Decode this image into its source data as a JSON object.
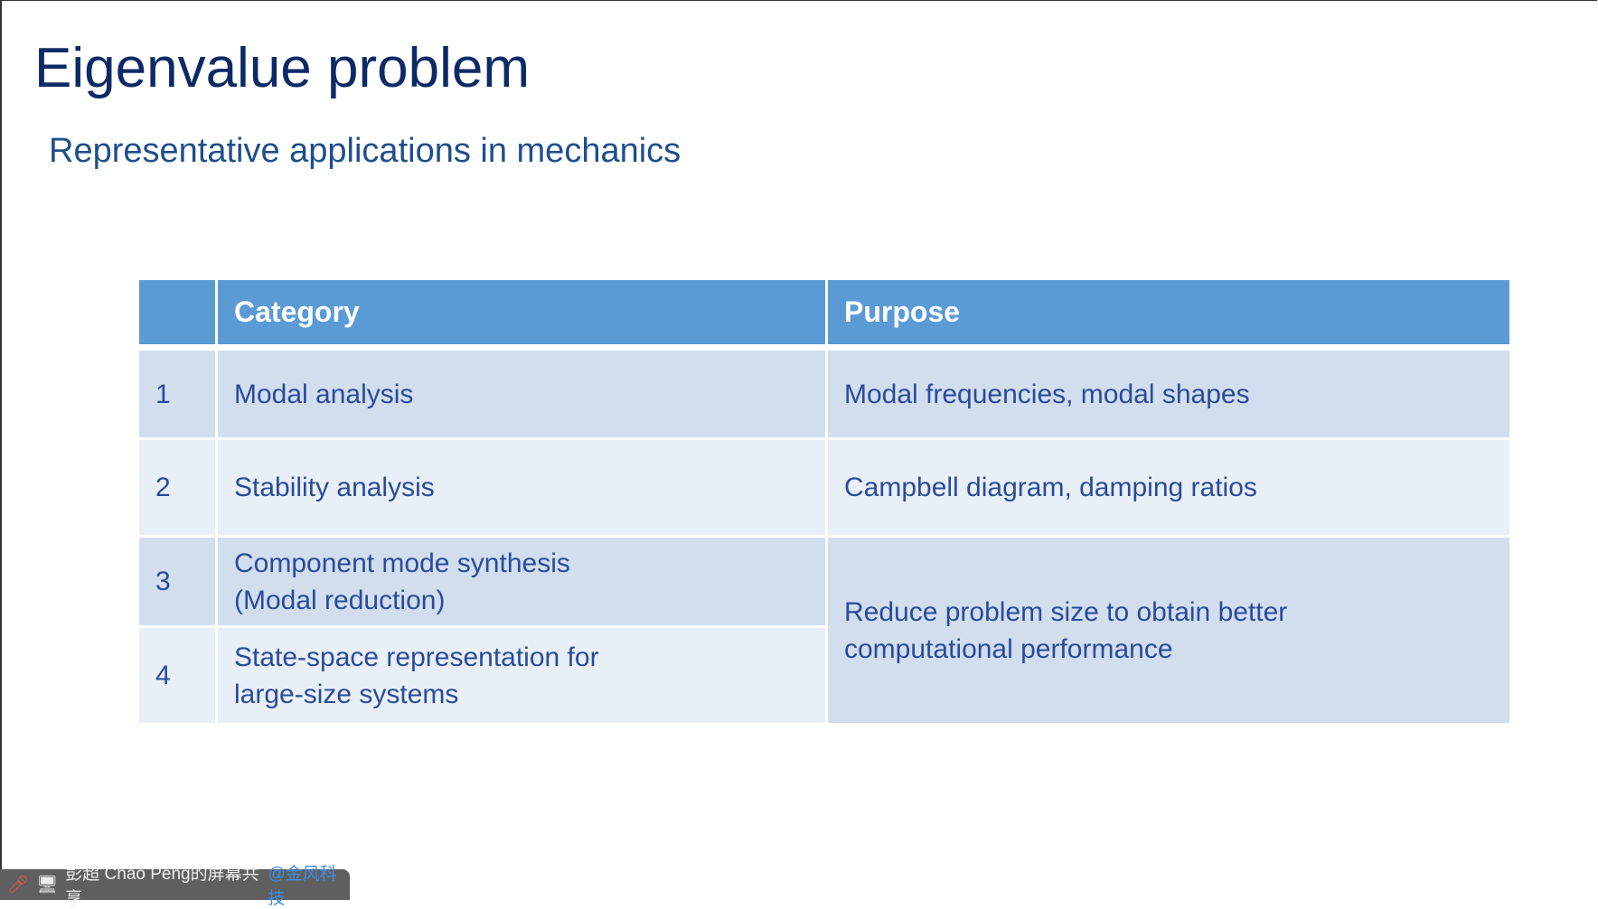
{
  "slide": {
    "title": "Eigenvalue problem",
    "subtitle": "Representative applications in mechanics"
  },
  "table": {
    "headers": [
      "",
      "Category",
      "Purpose"
    ],
    "rows": [
      {
        "num": "1",
        "category": "Modal analysis",
        "purpose": "Modal frequencies, modal shapes"
      },
      {
        "num": "2",
        "category": "Stability analysis",
        "purpose": "Campbell diagram, damping ratios"
      },
      {
        "num": "3",
        "category": "Component mode synthesis (Modal reduction)",
        "purpose": "Reduce problem size to obtain better computational performance"
      },
      {
        "num": "4",
        "category": "State-space representation for large-size systems"
      }
    ],
    "colors": {
      "header": "#5b9bd5",
      "row_dark": "#d1deee",
      "row_light": "#e9eff7",
      "text": "#2a4b9b"
    }
  },
  "share_bar": {
    "icons": [
      "mic-muted-icon",
      "screen-share-icon"
    ],
    "text": "彭超 Chao Peng的屏幕共享",
    "org": "@金风科技"
  }
}
